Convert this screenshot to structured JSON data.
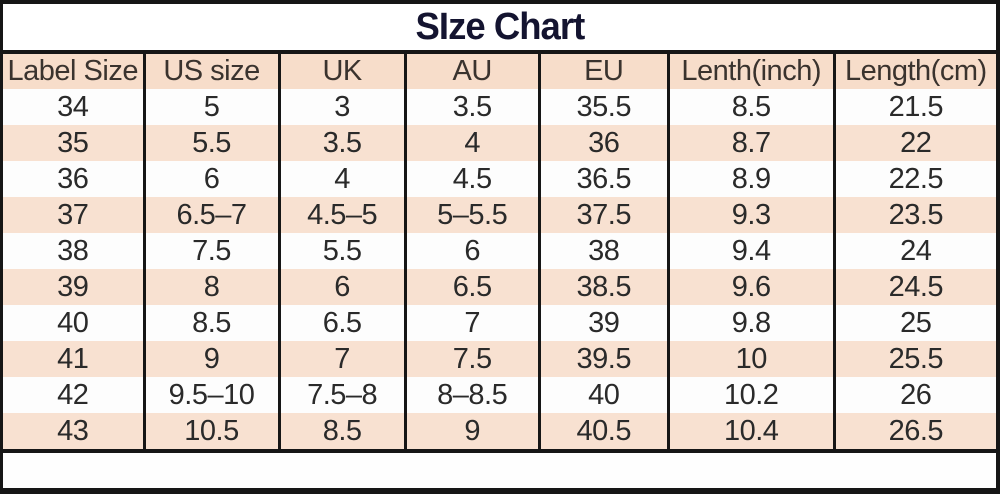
{
  "title": "SIze Chart",
  "colors": {
    "stripe_peach": "#f8e1d1",
    "header_peach": "#f7ddca",
    "grid_border": "#161616",
    "title_color": "#141430",
    "cell_text": "#2a2a2a",
    "background": "#fdfdfd"
  },
  "chart_data": {
    "type": "table",
    "title": "SIze Chart",
    "headers": [
      "Label Size",
      "US size",
      "UK",
      "AU",
      "EU",
      "Lenth(inch)",
      "Length(cm)"
    ],
    "rows": [
      [
        "34",
        "5",
        "3",
        "3.5",
        "35.5",
        "8.5",
        "21.5"
      ],
      [
        "35",
        "5.5",
        "3.5",
        "4",
        "36",
        "8.7",
        "22"
      ],
      [
        "36",
        "6",
        "4",
        "4.5",
        "36.5",
        "8.9",
        "22.5"
      ],
      [
        "37",
        "6.5–7",
        "4.5–5",
        "5–5.5",
        "37.5",
        "9.3",
        "23.5"
      ],
      [
        "38",
        "7.5",
        "5.5",
        "6",
        "38",
        "9.4",
        "24"
      ],
      [
        "39",
        "8",
        "6",
        "6.5",
        "38.5",
        "9.6",
        "24.5"
      ],
      [
        "40",
        "8.5",
        "6.5",
        "7",
        "39",
        "9.8",
        "25"
      ],
      [
        "41",
        "9",
        "7",
        "7.5",
        "39.5",
        "10",
        "25.5"
      ],
      [
        "42",
        "9.5–10",
        "7.5–8",
        "8–8.5",
        "40",
        "10.2",
        "26"
      ],
      [
        "43",
        "10.5",
        "8.5",
        "9",
        "40.5",
        "10.4",
        "26.5"
      ]
    ],
    "layout": {
      "row_striping": [
        "white",
        "peach"
      ],
      "grid": "vertical-only",
      "first_data_row_background": "white"
    }
  }
}
